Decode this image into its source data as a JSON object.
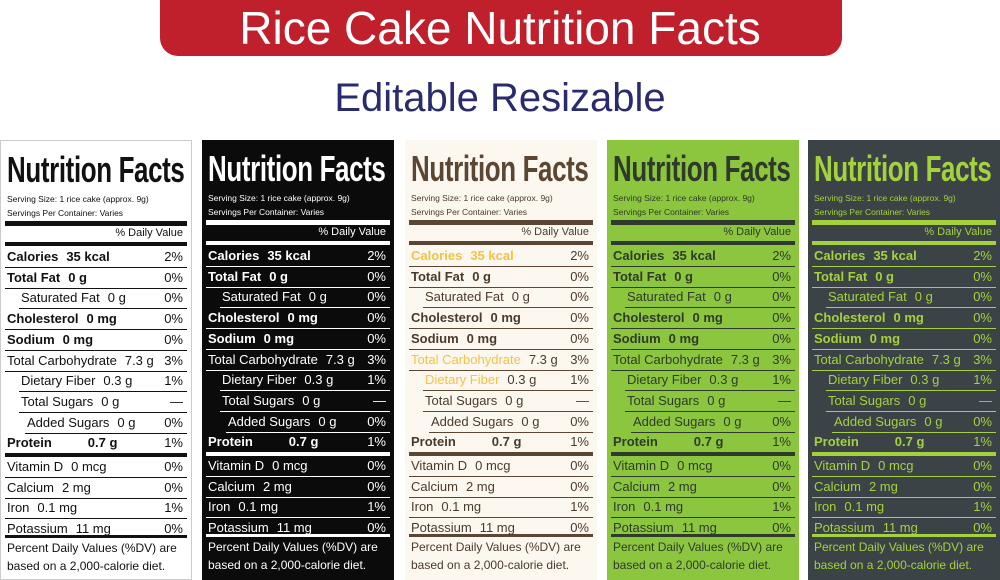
{
  "header": {
    "title": "Rice Cake Nutrition Facts",
    "subtitle": "Editable Resizable"
  },
  "label": {
    "title": "Nutrition Facts",
    "serving_size": "Serving Size: 1 rice cake (approx. 9g)",
    "servings": "Servings Per Container: Varies",
    "dv_header": "% Daily Value",
    "rows": [
      {
        "name": "Calories",
        "amount": "35 kcal",
        "dv": "2%"
      },
      {
        "name": "Total Fat",
        "amount": "0 g",
        "dv": "0%"
      },
      {
        "name": "Saturated Fat",
        "amount": "0 g",
        "dv": "0%"
      },
      {
        "name": "Cholesterol",
        "amount": "0 mg",
        "dv": "0%"
      },
      {
        "name": "Sodium",
        "amount": "0 mg",
        "dv": "0%"
      },
      {
        "name": "Total Carbohydrate",
        "amount": "7.3 g",
        "dv": "3%"
      },
      {
        "name": "Dietary Fiber",
        "amount": "0.3 g",
        "dv": "1%"
      },
      {
        "name": "Total Sugars",
        "amount": "0 g",
        "dv": "—"
      },
      {
        "name": "Added Sugars",
        "amount": "0 g",
        "dv": "0%"
      },
      {
        "name": "Protein",
        "amount": "0.7 g",
        "dv": "1%"
      },
      {
        "name": "Vitamin D",
        "amount": "0 mcg",
        "dv": "0%"
      },
      {
        "name": "Calcium",
        "amount": "2 mg",
        "dv": "0%"
      },
      {
        "name": "Iron",
        "amount": "0.1 mg",
        "dv": "1%"
      },
      {
        "name": "Potassium",
        "amount": "11 mg",
        "dv": "0%"
      }
    ],
    "footnote": "Percent Daily Values (%DV) are based on a 2,000-calorie diet."
  },
  "panels": [
    {
      "background": "#ffffff",
      "text": "#111111",
      "title_color": "#111111",
      "rule": "#111111",
      "highlight": "#111111"
    },
    {
      "background": "#0b0b0b",
      "text": "#ffffff",
      "title_color": "#ffffff",
      "rule": "#ffffff",
      "highlight": "#ffffff"
    },
    {
      "background": "#fcf7ef",
      "text": "#4a3a2c",
      "title_color": "#5b4634",
      "rule": "#5b4634",
      "highlight": "#f4c245"
    },
    {
      "background": "#8cc63e",
      "text": "#2f3a2a",
      "title_color": "#2f3a2a",
      "rule": "#2f3a2a",
      "highlight": "#2f3a2a"
    },
    {
      "background": "#3b4346",
      "text": "#a4d23c",
      "title_color": "#a4d23c",
      "rule": "#a4d23c",
      "highlight": "#a4d23c"
    }
  ]
}
